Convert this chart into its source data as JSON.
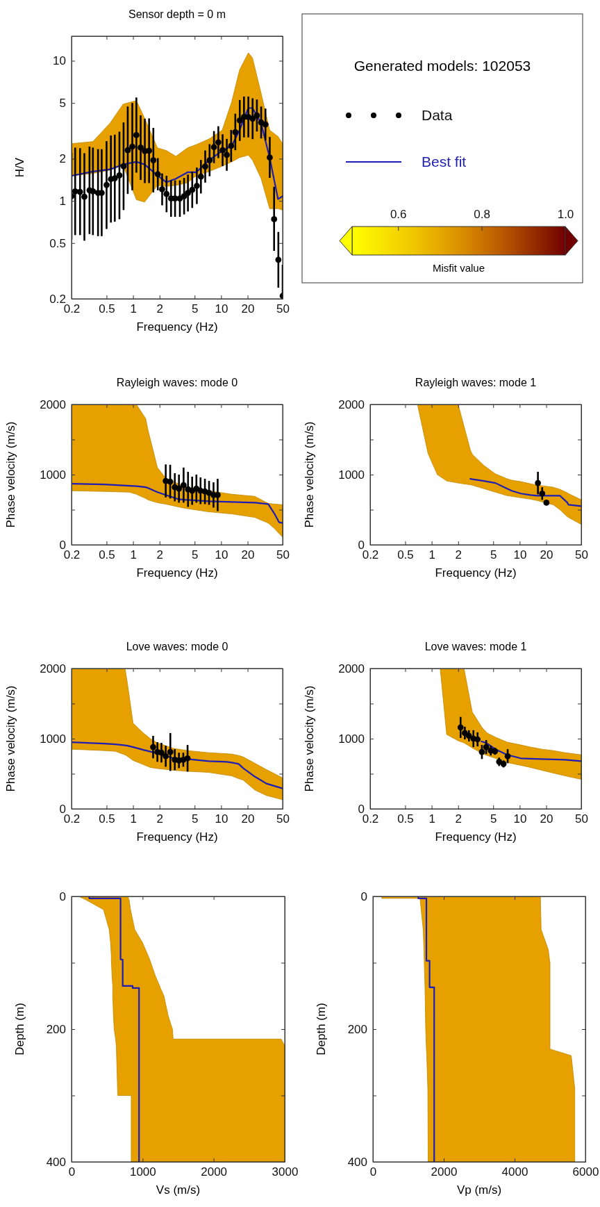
{
  "chart_data": [
    {
      "type": "line",
      "title": "Sensor depth = 0 m",
      "xlabel": "Frequency (Hz)",
      "ylabel": "H/V",
      "log": "xy",
      "xlim": [
        0.2,
        50
      ],
      "ylim": [
        0.2,
        15
      ],
      "xticks": [
        0.2,
        0.5,
        1,
        2,
        5,
        10,
        20,
        50
      ],
      "yticks": [
        0.2,
        0.5,
        1,
        2,
        5,
        10
      ],
      "legend": "right",
      "legend_title": "Generated models: 102053",
      "clabel": "Misfit value",
      "clim": [
        0.49,
        1
      ],
      "cticks": [
        0.6,
        0.8,
        {
          "value": 1,
          "label": "1.0"
        }
      ],
      "series": [
        {
          "name": "Data",
          "type": "scatter",
          "marker": "circle",
          "color": "#000000",
          "x": [
            0.2,
            0.22,
            0.25,
            0.28,
            0.32,
            0.35,
            0.4,
            0.44,
            0.5,
            0.56,
            0.62,
            0.7,
            0.78,
            0.87,
            0.98,
            1.09,
            1.22,
            1.36,
            1.52,
            1.7,
            1.91,
            2.14,
            2.4,
            2.7,
            3,
            3.4,
            3.8,
            4.2,
            4.7,
            5.3,
            5.9,
            6.6,
            7.4,
            8.3,
            9.3,
            10.4,
            11.6,
            13,
            14.5,
            16.3,
            18.2,
            20.4,
            22.8,
            25.5,
            28.5,
            31.9,
            35.7,
            40,
            44.7,
            50
          ],
          "values": [
            1.08,
            1.17,
            1.16,
            1.07,
            1.19,
            1.17,
            1.14,
            1.14,
            1.3,
            1.43,
            1.45,
            1.52,
            1.77,
            2.3,
            2.44,
            2.95,
            2.4,
            2.27,
            2.28,
            1.95,
            1.55,
            1.21,
            1.12,
            1.04,
            1.04,
            1.04,
            1.08,
            1.14,
            1.2,
            1.28,
            1.49,
            1.76,
            1.95,
            2.42,
            2.62,
            2.3,
            2.13,
            2.47,
            3.1,
            3.75,
            3.97,
            3.97,
            3.86,
            4.07,
            3.63,
            3.51,
            2.04,
            0.74,
            0.38,
            0.21
          ],
          "errors": [
            [
              0.53,
              2.21
            ],
            [
              0.57,
              2.4
            ],
            [
              0.57,
              2.38
            ],
            [
              0.52,
              2.19
            ],
            [
              0.58,
              2.44
            ],
            [
              0.57,
              2.4
            ],
            [
              0.56,
              2.34
            ],
            [
              0.56,
              2.34
            ],
            [
              0.63,
              2.67
            ],
            [
              0.7,
              2.93
            ],
            [
              0.71,
              2.97
            ],
            [
              0.74,
              3.12
            ],
            [
              0.86,
              3.63
            ],
            [
              1.12,
              4.72
            ],
            [
              1.19,
              5
            ],
            [
              1.59,
              5.47
            ],
            [
              1.41,
              4.08
            ],
            [
              1.34,
              3.86
            ],
            [
              1.34,
              3.88
            ],
            [
              1.15,
              3.32
            ],
            [
              1.19,
              2.02
            ],
            [
              0.93,
              1.57
            ],
            [
              0.83,
              1.51
            ],
            [
              0.77,
              1.4
            ],
            [
              0.77,
              1.4
            ],
            [
              0.77,
              1.4
            ],
            [
              0.8,
              1.46
            ],
            [
              0.84,
              1.54
            ],
            [
              0.89,
              1.62
            ],
            [
              0.95,
              1.73
            ],
            [
              1.13,
              1.96
            ],
            [
              1.35,
              2.29
            ],
            [
              1.5,
              2.54
            ],
            [
              1.86,
              3.15
            ],
            [
              2.02,
              3.41
            ],
            [
              1.77,
              2.99
            ],
            [
              1.64,
              2.77
            ],
            [
              1.9,
              3.21
            ],
            [
              2.3,
              4.19
            ],
            [
              2.68,
              5.25
            ],
            [
              2.84,
              5.56
            ],
            [
              2.84,
              5.56
            ],
            [
              2.76,
              5.4
            ],
            [
              3.13,
              5.29
            ],
            [
              2.79,
              4.72
            ],
            [
              2.7,
              4.56
            ],
            [
              1.46,
              2.86
            ],
            [
              0.44,
              1.26
            ],
            [
              0.24,
              0.6
            ],
            [
              0.2,
              0.35
            ]
          ]
        },
        {
          "name": "Best fit",
          "type": "line",
          "color": "#1e1eb4",
          "x": [
            0.2,
            0.35,
            0.55,
            0.77,
            1.09,
            1.35,
            1.89,
            2.38,
            3.07,
            4.16,
            5.2,
            7.3,
            10.3,
            13.2,
            16.2,
            20.4,
            22.7,
            28.4,
            35.6,
            44.3,
            50
          ],
          "values": [
            1.51,
            1.62,
            1.68,
            1.82,
            1.9,
            1.82,
            1.52,
            1.36,
            1.44,
            1.6,
            1.6,
            1.95,
            2.28,
            2.47,
            3.2,
            4.6,
            4.6,
            3.6,
            2.04,
            1.03,
            1.08
          ],
          "lower": [
            1.51,
            1.57,
            1.66,
            1.8,
            1.02,
            0.98,
            1.29,
            1.27,
            1.29,
            1.35,
            1.51,
            1.62,
            1.77,
            1.9,
            2.04,
            2.12,
            1.96,
            1.45,
            0.88,
            0.88,
            0.86
          ],
          "upper": [
            2.56,
            2.65,
            3.6,
            4.9,
            5.2,
            3.9,
            2.39,
            2.29,
            2.08,
            2.39,
            2.52,
            2.77,
            3.2,
            5.1,
            8.6,
            11.4,
            10.5,
            5.9,
            3.2,
            2.88,
            2.56
          ]
        }
      ]
    },
    {
      "type": "line",
      "title": "Rayleigh waves: mode 0",
      "xlabel": "Frequency (Hz)",
      "ylabel": "Phase velocity (m/s)",
      "log": "x",
      "xlim": [
        0.2,
        50
      ],
      "ylim": [
        0,
        2000
      ],
      "xticks": [
        0.2,
        0.5,
        1,
        2,
        5,
        10,
        20,
        50
      ],
      "yticks": [
        0,
        {
          "value": 500,
          "label": null
        },
        1000,
        {
          "value": 1500,
          "label": null
        },
        2000
      ],
      "series": [
        {
          "type": "scatter",
          "marker": "circle",
          "color": "#000000",
          "x": [
            2.35,
            2.64,
            2.98,
            3.32,
            3.75,
            4.21,
            4.69,
            5.24,
            5.84,
            6.55,
            7.3,
            8.2,
            9.14
          ],
          "values": [
            910,
            900,
            820,
            800,
            850,
            790,
            770,
            800,
            770,
            760,
            740,
            710,
            710
          ],
          "errors": [
            235,
            240,
            200,
            200,
            250,
            250,
            200,
            200,
            190,
            180,
            170,
            180,
            230
          ]
        },
        {
          "type": "line",
          "color": "#1e1eb4",
          "x": [
            0.2,
            0.47,
            0.91,
            1.09,
            1.39,
            1.48,
            1.89,
            2.35,
            3.26,
            3.91,
            4.16,
            7.2,
            13.2,
            24.1,
            34.3,
            40.5,
            45.6,
            50
          ],
          "values": [
            870,
            860,
            840,
            835,
            820,
            810,
            750,
            710,
            650,
            640,
            640,
            620,
            610,
            600,
            580,
            440,
            320,
            310
          ],
          "lower": [
            770,
            760,
            750,
            720,
            660,
            640,
            600,
            580,
            540,
            520,
            515,
            470,
            440,
            390,
            310,
            230,
            160,
            110
          ],
          "upper": [
            2000,
            2000,
            2000,
            2000,
            1800,
            1630,
            1100,
            950,
            870,
            830,
            820,
            770,
            720,
            690,
            590,
            580,
            575,
            570
          ]
        }
      ]
    },
    {
      "type": "line",
      "title": "Rayleigh waves: mode 1",
      "xlabel": "Frequency (Hz)",
      "ylabel": "Phase velocity (m/s)",
      "log": "x",
      "xlim": [
        0.2,
        50
      ],
      "ylim": [
        0,
        2000
      ],
      "xticks": [
        0.2,
        0.5,
        1,
        2,
        5,
        10,
        20,
        50
      ],
      "yticks": [
        0,
        {
          "value": 500,
          "label": null
        },
        1000,
        {
          "value": 1500,
          "label": null
        },
        2000
      ],
      "series": [
        {
          "type": "scatter",
          "marker": "circle",
          "color": "#000000",
          "x": [
            16.1,
            18,
            20.1
          ],
          "values": [
            880,
            730,
            600
          ],
          "errors": [
            160,
            90,
            30
          ]
        },
        {
          "type": "line",
          "color": "#1e1eb4",
          "x": [
            0.69,
            0.91,
            1.16,
            1.48,
            2.0,
            2.75,
            2.89,
            3.91,
            5.3,
            7.2,
            8.1,
            10.3,
            13.2,
            15.8,
            24.1,
            28.6,
            34.8,
            35.8,
            50
          ],
          "values": [
            null,
            null,
            null,
            null,
            null,
            940,
            935,
            910,
            880,
            800,
            770,
            730,
            710,
            700,
            700,
            700,
            600,
            570,
            550
          ],
          "lower": [
            2000,
            1300,
            1000,
            910,
            880,
            855,
            850,
            800,
            750,
            700,
            690,
            670,
            650,
            630,
            570,
            500,
            400,
            390,
            290
          ],
          "upper": [
            2000,
            2000,
            2000,
            2000,
            2000,
            1350,
            1290,
            1130,
            1010,
            940,
            920,
            900,
            870,
            850,
            820,
            790,
            740,
            730,
            640
          ]
        }
      ]
    },
    {
      "type": "line",
      "title": "Love waves: mode 0",
      "xlabel": "Frequency (Hz)",
      "ylabel": "Phase velocity (m/s)",
      "log": "x",
      "xlim": [
        0.2,
        50
      ],
      "ylim": [
        0,
        2000
      ],
      "xticks": [
        0.2,
        0.5,
        1,
        2,
        5,
        10,
        20,
        50
      ],
      "yticks": [
        0,
        {
          "value": 500,
          "label": null
        },
        1000,
        {
          "value": 1500,
          "label": null
        },
        2000
      ],
      "series": [
        {
          "type": "scatter",
          "marker": "circle",
          "color": "#000000",
          "x": [
            1.69,
            1.89,
            2.1,
            2.35,
            2.65,
            2.98,
            3.32,
            3.72,
            4.16
          ],
          "values": [
            880,
            810,
            800,
            750,
            810,
            700,
            690,
            700,
            720
          ],
          "errors": [
            160,
            140,
            140,
            150,
            270,
            150,
            110,
            100,
            190
          ]
        },
        {
          "type": "line",
          "color": "#1e1eb4",
          "x": [
            0.2,
            0.47,
            0.63,
            0.81,
            0.86,
            1.0,
            1.31,
            1.57,
            1.89,
            2.89,
            4.16,
            7.2,
            11.6,
            13.2,
            15.8,
            17.8,
            24.1,
            32.7,
            50
          ],
          "values": [
            950,
            930,
            920,
            905,
            900,
            880,
            840,
            815,
            790,
            720,
            710,
            680,
            670,
            660,
            640,
            580,
            460,
            360,
            290
          ],
          "lower": [
            850,
            830,
            820,
            770,
            750,
            690,
            630,
            590,
            575,
            550,
            535,
            520,
            480,
            470,
            430,
            410,
            270,
            190,
            130
          ],
          "upper": [
            2000,
            2000,
            2000,
            2000,
            1800,
            1220,
            1080,
            1000,
            940,
            860,
            830,
            800,
            785,
            780,
            760,
            740,
            650,
            560,
            440
          ]
        }
      ]
    },
    {
      "type": "line",
      "title": "Love waves: mode 1",
      "xlabel": "Frequency (Hz)",
      "ylabel": "Phase velocity (m/s)",
      "log": "x",
      "xlim": [
        0.2,
        50
      ],
      "ylim": [
        0,
        2000
      ],
      "xticks": [
        0.2,
        0.5,
        1,
        2,
        5,
        10,
        20,
        50
      ],
      "yticks": [
        0,
        {
          "value": 500,
          "label": null
        },
        1000,
        {
          "value": 1500,
          "label": null
        },
        2000
      ],
      "series": [
        {
          "type": "scatter",
          "marker": "circle",
          "color": "#000000",
          "x": [
            2.13,
            2.38,
            2.65,
            2.98,
            3.32,
            3.72,
            4.16,
            4.69,
            5.24,
            5.84,
            6.55,
            7.3
          ],
          "values": [
            1160,
            1080,
            1040,
            1000,
            990,
            810,
            880,
            830,
            820,
            670,
            640,
            750
          ],
          "errors": [
            150,
            90,
            80,
            120,
            100,
            100,
            100,
            70,
            50,
            60,
            50,
            100
          ]
        },
        {
          "type": "line",
          "color": "#1e1eb4",
          "x": [
            1.25,
            1.48,
            2.0,
            2.33,
            2.89,
            3.68,
            3.91,
            4.28,
            5.3,
            7.2,
            10.3,
            13.2,
            17.8,
            24.1,
            32.7,
            50
          ],
          "values": [
            null,
            null,
            null,
            null,
            null,
            960,
            950,
            930,
            850,
            770,
            720,
            715,
            710,
            705,
            700,
            680
          ],
          "lower": [
            2000,
            1060,
            970,
            940,
            870,
            795,
            780,
            760,
            720,
            660,
            620,
            590,
            550,
            510,
            470,
            420
          ],
          "upper": [
            2000,
            2000,
            2000,
            2000,
            1380,
            1170,
            1130,
            1080,
            1020,
            950,
            910,
            880,
            850,
            830,
            800,
            770
          ]
        }
      ]
    },
    {
      "type": "line",
      "orientation": "horizontal",
      "xlabel": "Vs (m/s)",
      "ylabel": "Depth (m)",
      "xlim": [
        0,
        3000
      ],
      "ylim": [
        400,
        0
      ],
      "xticks": [
        0,
        1000,
        2000,
        3000
      ],
      "yticks": [
        0,
        {
          "value": 100,
          "label": null
        },
        200,
        {
          "value": 300,
          "label": null
        },
        400
      ],
      "series": [
        {
          "type": "line",
          "color": "#1e1eb4",
          "x": [
            0,
            3,
            3,
            5,
            20,
            50,
            70,
            90,
            95,
            95,
            120,
            135,
            135,
            138,
            138,
            150,
            180,
            200,
            215,
            215,
            225,
            300,
            300,
            400
          ],
          "values": [
            250,
            250,
            690,
            690,
            690,
            690,
            690,
            690,
            690,
            720,
            720,
            720,
            860,
            860,
            950,
            950,
            950,
            950,
            950,
            950,
            950,
            950,
            950,
            950
          ],
          "lower": [
            100,
            160,
            160,
            200,
            450,
            530,
            550,
            560,
            560,
            560,
            570,
            580,
            580,
            580,
            580,
            580,
            590,
            600,
            620,
            620,
            630,
            650,
            840,
            840
          ],
          "upper": [
            800,
            800,
            800,
            810,
            830,
            890,
            1000,
            1080,
            1100,
            1100,
            1180,
            1240,
            1240,
            1250,
            1250,
            1300,
            1360,
            1420,
            1430,
            2950,
            3000,
            3000,
            3000,
            3000
          ]
        }
      ]
    },
    {
      "type": "line",
      "orientation": "horizontal",
      "xlabel": "Vp (m/s)",
      "ylabel": "Depth (m)",
      "xlim": [
        0,
        6000
      ],
      "ylim": [
        400,
        0
      ],
      "xticks": [
        0,
        2000,
        4000,
        6000
      ],
      "yticks": [
        0,
        {
          "value": 100,
          "label": null
        },
        200,
        {
          "value": 300,
          "label": null
        },
        400
      ],
      "series": [
        {
          "type": "line",
          "color": "#1e1eb4",
          "x": [
            0,
            3,
            3,
            50,
            80,
            97,
            97,
            100,
            137,
            137,
            200,
            230,
            240,
            290,
            400
          ],
          "values": [
            1280,
            1280,
            1510,
            1510,
            1510,
            1510,
            1600,
            1600,
            1600,
            1730,
            1730,
            1730,
            1730,
            1730,
            1730
          ],
          "lower": [
            250,
            250,
            1330,
            1420,
            1440,
            1450,
            1450,
            1450,
            1470,
            1470,
            1490,
            1510,
            1520,
            1550,
            1560
          ],
          "upper": [
            4730,
            4730,
            4730,
            4750,
            4950,
            4990,
            4990,
            5000,
            5000,
            5000,
            5000,
            5000,
            5600,
            5700,
            5700
          ]
        }
      ]
    }
  ]
}
